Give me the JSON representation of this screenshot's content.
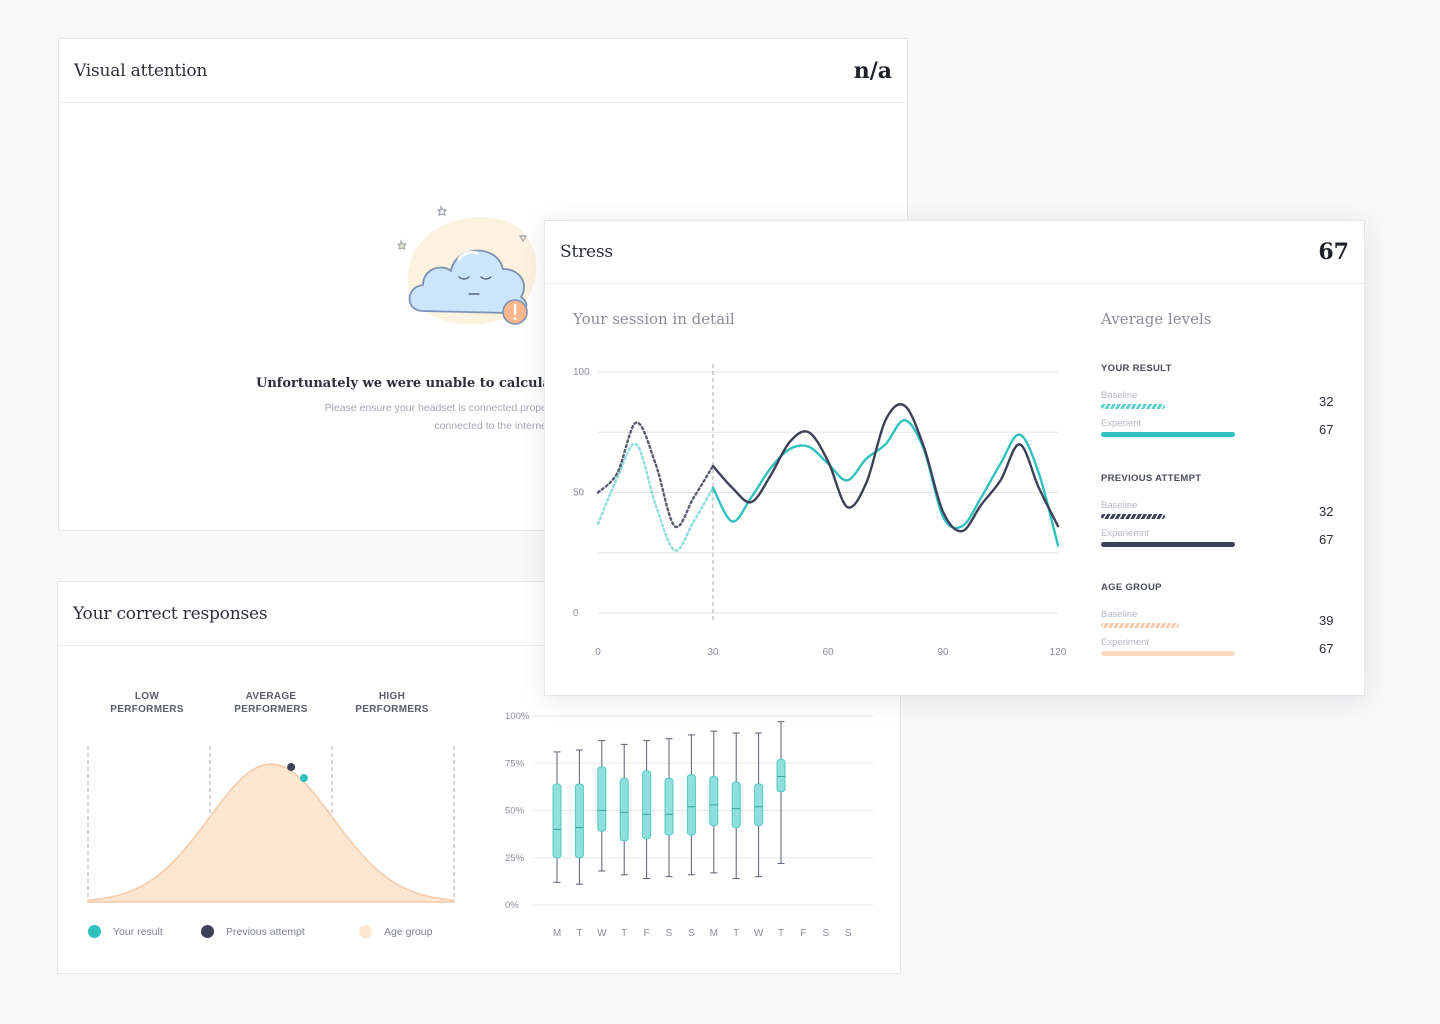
{
  "visual_attention": {
    "title": "Visual attention",
    "score": "n/a",
    "error_title": "Unfortunately we were unable to calculate y",
    "error_line1": "Please ensure your headset is connected prope",
    "error_line2": "connected to the interne"
  },
  "stress": {
    "title": "Stress",
    "score": "67",
    "session_title": "Your session in detail",
    "average_title": "Average levels",
    "groups": [
      {
        "title": "YOUR RESULT",
        "rows": [
          {
            "label": "Baseline",
            "value": "32",
            "fraction": 0.32,
            "style": "striped",
            "color": "#5fd0cf"
          },
          {
            "label": "Experient",
            "value": "67",
            "fraction": 0.67,
            "style": "solid",
            "color": "#2fc1bd"
          }
        ]
      },
      {
        "title": "PREVIOUS ATTEMPT",
        "rows": [
          {
            "label": "Baseline",
            "value": "32",
            "fraction": 0.32,
            "style": "striped",
            "color": "#3d4157"
          },
          {
            "label": "Experiemnt",
            "value": "67",
            "fraction": 0.67,
            "style": "solid",
            "color": "#3d4157"
          }
        ]
      },
      {
        "title": "AGE GROUP",
        "rows": [
          {
            "label": "Baseline",
            "value": "39",
            "fraction": 0.39,
            "style": "striped",
            "color": "#f6c9a8"
          },
          {
            "label": "Experiment",
            "value": "67",
            "fraction": 0.67,
            "style": "solid",
            "color": "#f9d8bf"
          }
        ]
      }
    ]
  },
  "responses": {
    "title": "Your correct responses",
    "perf_labels": [
      [
        "LOW",
        "PERFORMERS"
      ],
      [
        "AVERAGE",
        "PERFORMERS"
      ],
      [
        "HIGH",
        "PERFORMERS"
      ]
    ],
    "legend": [
      {
        "label": "Your result",
        "color": "#2fc1bd"
      },
      {
        "label": "Previous attempt",
        "color": "#3d4157"
      },
      {
        "label": "Age group",
        "color": "#fde6d2"
      }
    ]
  },
  "chart_data": [
    {
      "type": "line",
      "x": [
        0,
        5,
        10,
        15,
        20,
        25,
        30,
        35,
        40,
        45,
        50,
        55,
        60,
        65,
        70,
        75,
        80,
        85,
        90,
        95,
        100,
        105,
        110,
        115,
        120
      ],
      "xticks": [
        0,
        30,
        60,
        90,
        120
      ],
      "yticks": [
        0,
        50,
        100
      ],
      "xlim": [
        0,
        120
      ],
      "ylim": [
        0,
        100
      ],
      "marker_x": 30,
      "baseline_until": 30,
      "series": [
        {
          "color": "#3d4157",
          "values": [
            50,
            58,
            79,
            62,
            36,
            48,
            61,
            52,
            46,
            57,
            71,
            75,
            63,
            44,
            54,
            80,
            86,
            69,
            42,
            34,
            45,
            55,
            70,
            52,
            36
          ]
        },
        {
          "color": "#2fc1bd",
          "values": [
            37,
            56,
            70,
            45,
            26,
            38,
            52,
            38,
            48,
            60,
            68,
            69,
            62,
            55,
            64,
            70,
            80,
            68,
            40,
            36,
            48,
            62,
            74,
            58,
            28
          ]
        }
      ]
    },
    {
      "type": "area",
      "distribution": "normal",
      "mean": 0.5,
      "sd": 0.17,
      "bands": [
        "LOW PERFORMERS",
        "AVERAGE PERFORMERS",
        "HIGH PERFORMERS"
      ],
      "markers": [
        {
          "series": "Previous attempt",
          "x": 0.555
        },
        {
          "series": "Your result",
          "x": 0.59
        }
      ]
    },
    {
      "type": "box",
      "categories": [
        "M",
        "T",
        "W",
        "T",
        "F",
        "S",
        "S",
        "M",
        "T",
        "W",
        "T",
        "F",
        "S",
        "S"
      ],
      "yticks": [
        "0%",
        "25%",
        "50%",
        "75%",
        "100%"
      ],
      "ylim": [
        0,
        100
      ],
      "boxes": [
        {
          "min": 12,
          "q1": 25,
          "median": 40,
          "q3": 64,
          "max": 81
        },
        {
          "min": 11,
          "q1": 25,
          "median": 41,
          "q3": 64,
          "max": 82
        },
        {
          "min": 18,
          "q1": 39,
          "median": 50,
          "q3": 73,
          "max": 87
        },
        {
          "min": 16,
          "q1": 34,
          "median": 49,
          "q3": 67,
          "max": 85
        },
        {
          "min": 14,
          "q1": 35,
          "median": 48,
          "q3": 71,
          "max": 87
        },
        {
          "min": 15,
          "q1": 37,
          "median": 48,
          "q3": 67,
          "max": 88
        },
        {
          "min": 16,
          "q1": 37,
          "median": 52,
          "q3": 69,
          "max": 90
        },
        {
          "min": 17,
          "q1": 42,
          "median": 53,
          "q3": 68,
          "max": 92
        },
        {
          "min": 14,
          "q1": 41,
          "median": 51,
          "q3": 65,
          "max": 91
        },
        {
          "min": 15,
          "q1": 42,
          "median": 52,
          "q3": 64,
          "max": 91
        },
        {
          "min": 22,
          "q1": 60,
          "median": 68,
          "q3": 77,
          "max": 97
        }
      ]
    }
  ]
}
